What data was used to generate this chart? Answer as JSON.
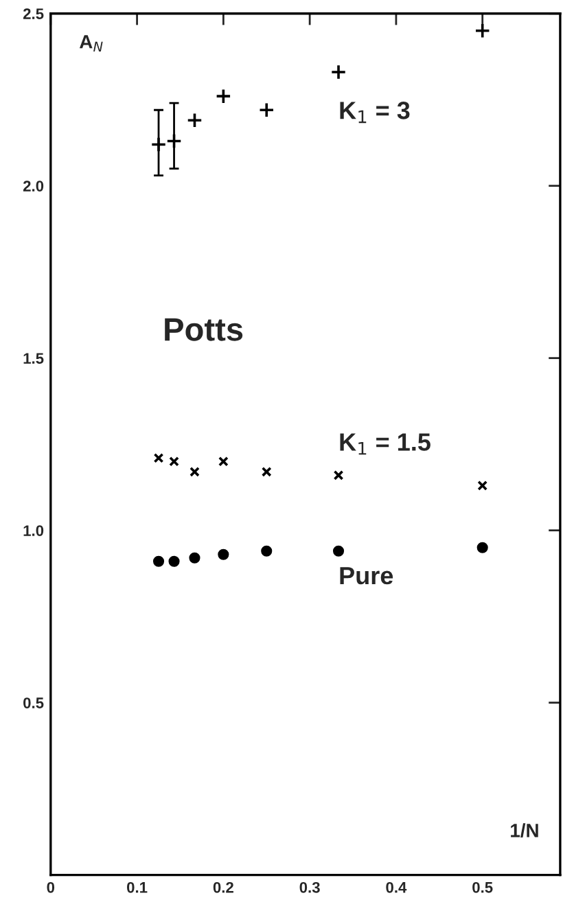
{
  "chart_data": {
    "type": "scatter",
    "xlabel": "1/N",
    "ylabel": "A$_{N}$",
    "x": [
      0.125,
      0.1429,
      0.1667,
      0.2,
      0.25,
      0.3333,
      0.5
    ],
    "series": [
      {
        "color": "#000000",
        "marker": "plus",
        "values": [
          2.12,
          2.13,
          2.19,
          2.26,
          2.22,
          2.33,
          2.45
        ],
        "errors": [
          [
            2.03,
            2.22
          ],
          [
            2.05,
            2.24
          ],
          null,
          null,
          null,
          null,
          null
        ]
      },
      {
        "color": "#000000",
        "marker": "cross",
        "values": [
          1.21,
          1.2,
          1.17,
          1.2,
          1.17,
          1.16,
          1.13
        ]
      },
      {
        "color": "#000000",
        "marker": "circle",
        "values": [
          0.91,
          0.91,
          0.92,
          0.93,
          0.94,
          0.94,
          0.95
        ]
      }
    ],
    "annotations": [
      "K$_{1}$ = 3",
      "K$_{1}$ = 1.5",
      "Pure",
      "Potts"
    ],
    "xlim": [
      0,
      0.59
    ],
    "ylim": [
      0,
      2.5
    ],
    "xticks": [
      0,
      0.1,
      0.2,
      0.3,
      0.4,
      0.5
    ],
    "yticks": [
      0.5,
      {
        "value": 1.0,
        "label": "1.0"
      },
      1.5,
      {
        "value": 2.0,
        "label": "2.0"
      },
      2.5
    ],
    "grid": false,
    "legend": false
  }
}
